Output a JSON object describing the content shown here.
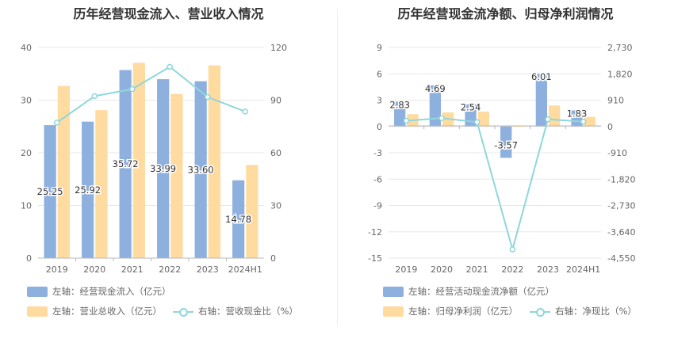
{
  "colors": {
    "blue": "#8eb0df",
    "orange": "#ffdb9f",
    "teal": "#8fd7db"
  },
  "chart_data": [
    {
      "type": "bar",
      "title": "历年经营现金流入、营业收入情况",
      "categories": [
        "2019",
        "2020",
        "2021",
        "2022",
        "2023",
        "2024H1"
      ],
      "series": [
        {
          "name": "左轴：经营现金流入（亿元）",
          "axis": "left",
          "kind": "bar",
          "color": "#8eb0df",
          "values": [
            25.25,
            25.92,
            35.72,
            33.99,
            33.6,
            14.78
          ],
          "labels": [
            "25.25",
            "25.92",
            "35.72",
            "33.99",
            "33.60",
            "14.78"
          ]
        },
        {
          "name": "左轴：营业总收入（亿元）",
          "axis": "left",
          "kind": "bar",
          "color": "#ffdb9f",
          "values": [
            32.7,
            28.1,
            37.1,
            31.2,
            36.6,
            17.7
          ]
        },
        {
          "name": "右轴：营收现金比（%）",
          "axis": "right",
          "kind": "line",
          "color": "#8fd7db",
          "values": [
            77.2,
            92.3,
            96.3,
            109.0,
            91.8,
            83.5
          ]
        }
      ],
      "left_axis": {
        "min": 0,
        "max": 40,
        "ticks": [
          0,
          10,
          20,
          30,
          40
        ],
        "tick_labels": [
          "0",
          "10",
          "20",
          "30",
          "40"
        ]
      },
      "right_axis": {
        "min": 0,
        "max": 120,
        "ticks": [
          0,
          30,
          60,
          90,
          120
        ],
        "tick_labels": [
          "0",
          "30",
          "60",
          "90",
          "120"
        ]
      },
      "grid": true,
      "legend_position": "bottom-left"
    },
    {
      "type": "bar",
      "title": "历年经营现金流净额、归母净利润情况",
      "categories": [
        "2019",
        "2020",
        "2021",
        "2022",
        "2023",
        "2024H1"
      ],
      "series": [
        {
          "name": "左轴：经营活动现金流净额（亿元）",
          "axis": "left",
          "kind": "bar",
          "color": "#8eb0df",
          "values": [
            2.83,
            4.69,
            2.54,
            -3.57,
            6.01,
            1.83
          ],
          "labels": [
            "2.83",
            "4.69",
            "2.54",
            "-3.57",
            "6.01",
            "1.83"
          ]
        },
        {
          "name": "左轴：归母净利润（亿元）",
          "axis": "left",
          "kind": "bar",
          "color": "#ffdb9f",
          "values": [
            1.4,
            1.6,
            1.7,
            0.05,
            2.4,
            1.1
          ]
        },
        {
          "name": "右轴：净现比（%）",
          "axis": "right",
          "kind": "line",
          "color": "#8fd7db",
          "values": [
            200,
            290,
            150,
            -4250,
            250,
            165
          ]
        }
      ],
      "left_axis": {
        "min": -15,
        "max": 9,
        "ticks": [
          -15,
          -12,
          -9,
          -6,
          -3,
          0,
          3,
          6,
          9
        ],
        "tick_labels": [
          "-15",
          "-12",
          "-9",
          "-6",
          "-3",
          "0",
          "3",
          "6",
          "9"
        ]
      },
      "right_axis": {
        "min": -4550,
        "max": 2730,
        "ticks": [
          -4550,
          -3640,
          -2730,
          -1820,
          -910,
          0,
          910,
          1820,
          2730
        ],
        "tick_labels": [
          "-4,550",
          "-3,640",
          "-2,730",
          "-1,820",
          "-910",
          "0",
          "910",
          "1,820",
          "2,730"
        ]
      },
      "grid": true,
      "legend_position": "bottom-left"
    }
  ]
}
